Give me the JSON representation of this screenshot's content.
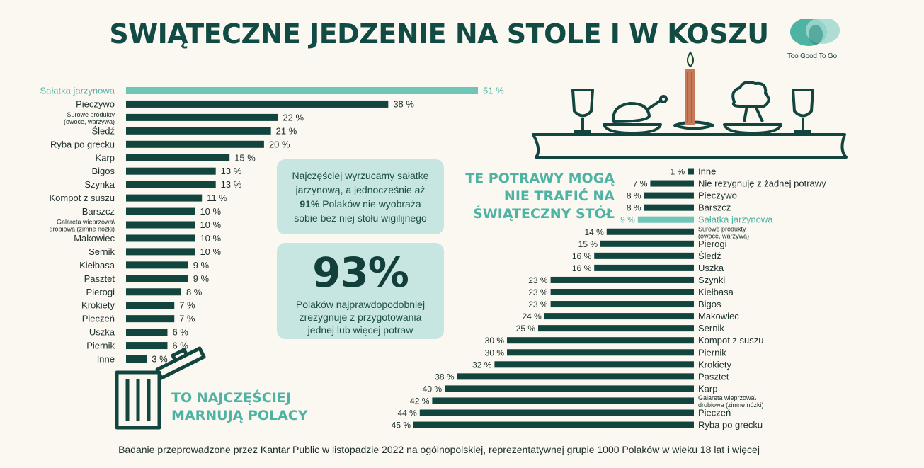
{
  "title": "SWIĄTECZNE JEDZENIE NA STOLE I W KOSZU",
  "logo": {
    "text": "Too Good To Go"
  },
  "colors": {
    "dark": "#12453e",
    "highlight": "#6fc5b8",
    "box": "#c7e6e1",
    "accent_text": "#4fb3a4"
  },
  "left_headline": [
    "TO NAJCZĘŚCIEJ",
    "MARNUJĄ POLACY"
  ],
  "right_headline": [
    "TE POTRAWY MOGĄ",
    "NIE TRAFIĆ NA",
    "ŚWIĄTECZNY STÓŁ"
  ],
  "info_box": {
    "line1": "Najczęściej wyrzucamy sałatkę",
    "line2": "jarzynową, a jednocześnie aż",
    "line3_bold": "91%",
    "line3_rest": " Polaków nie wyobraża",
    "line4": "sobie bez niej stołu wigilijnego"
  },
  "stat_box": {
    "value": "93%",
    "line1": "Polaków najprawdopodobniej",
    "line2": "zrezygnuje z przygotowania",
    "line3": "jednej lub więcej potraw"
  },
  "footer": "Badanie przeprowadzone przez Kantar Public w listopadzie 2022 na ogólnopolskiej, reprezentatywnej grupie 1000 Polaków w wieku 18 lat i więcej",
  "chart_data": [
    {
      "type": "bar",
      "title": "TO NAJCZĘŚCIEJ MARNUJĄ POLACY",
      "unit": "%",
      "categories": [
        "Sałatka jarzynowa",
        "Pieczywo",
        "Surowe produkty|(owoce, warzywa)",
        "Śledź",
        "Ryba po grecku",
        "Karp",
        "Bigos",
        "Szynka",
        "Kompot z suszu",
        "Barszcz",
        "Galareta wieprzowa\\|drobiowa (zimne nóżki)",
        "Makowiec",
        "Sernik",
        "Kiełbasa",
        "Pasztet",
        "Pierogi",
        "Krokiety",
        "Pieczeń",
        "Uszka",
        "Piernik",
        "Inne"
      ],
      "values": [
        51,
        38,
        22,
        21,
        20,
        15,
        13,
        13,
        11,
        10,
        10,
        10,
        10,
        9,
        9,
        8,
        7,
        7,
        6,
        6,
        3
      ],
      "value_labels": [
        "51 %",
        "38 %",
        "22 %",
        "21 %",
        "20 %",
        "15 %",
        "13 %",
        "13 %",
        "11 %",
        "10 %",
        "10 %",
        "10 %",
        "10 %",
        "9 %",
        "9 %",
        "8 %",
        "7 %",
        "7 %",
        "6 %",
        "6 %",
        "3 %"
      ],
      "highlight": [
        0
      ]
    },
    {
      "type": "bar",
      "title": "TE POTRAWY MOGĄ NIE TRAFIĆ NA ŚWIĄTECZNY STÓŁ",
      "unit": "%",
      "categories": [
        "Inne",
        "Nie rezygnuję z żadnej potrawy",
        "Pieczywo",
        "Barszcz",
        "Sałatka jarzynowa",
        "Surowe produkty|(owoce, warzywa)",
        "Pierogi",
        "Śledź",
        "Uszka",
        "Szynki",
        "Kiełbasa",
        "Bigos",
        "Makowiec",
        "Sernik",
        "Kompot z suszu",
        "Piernik",
        "Krokiety",
        "Pasztet",
        "Karp",
        "Galareta wieprzowa\\|drobiowa (zimne nóżki)",
        "Pieczeń",
        "Ryba po grecku"
      ],
      "values": [
        1,
        7,
        8,
        8,
        9,
        14,
        15,
        16,
        16,
        23,
        23,
        23,
        24,
        25,
        30,
        30,
        32,
        38,
        40,
        42,
        44,
        45
      ],
      "value_labels": [
        "1 %",
        "7 %",
        "8 %",
        "8 %",
        "9 %",
        "14 %",
        "15 %",
        "16 %",
        "16 %",
        "23 %",
        "23 %",
        "23 %",
        "24 %",
        "25 %",
        "30 %",
        "30 %",
        "32 %",
        "38 %",
        "40 %",
        "42 %",
        "44 %",
        "45 %"
      ],
      "highlight": [
        4
      ]
    }
  ]
}
